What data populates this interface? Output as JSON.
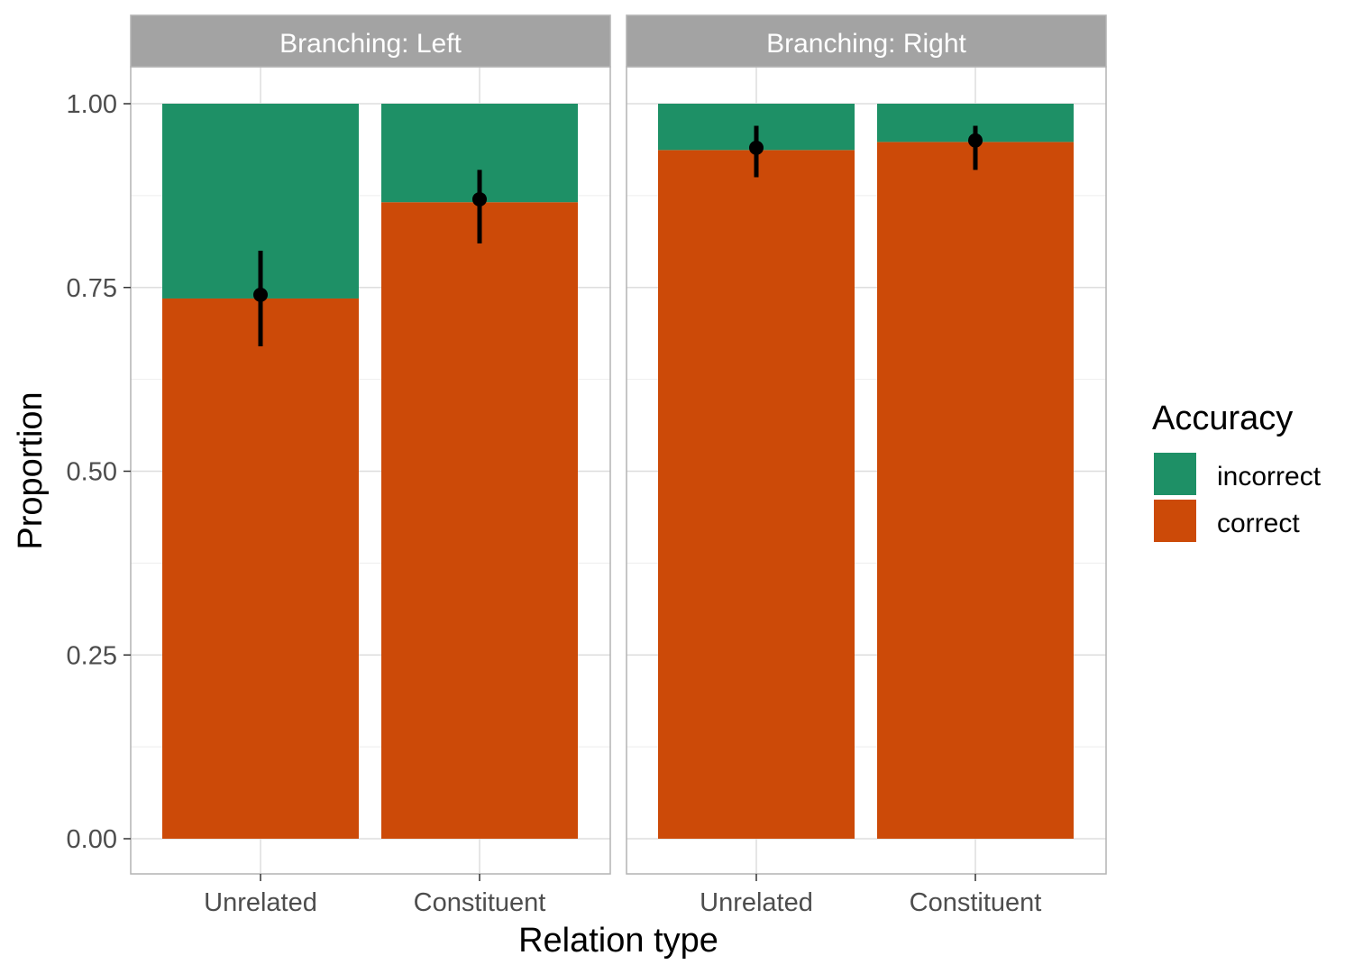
{
  "chart_data": {
    "type": "bar",
    "stacked": true,
    "facets": [
      "Branching: Left",
      "Branching: Right"
    ],
    "categories": [
      "Unrelated",
      "Constituent"
    ],
    "xlabel": "Relation type",
    "ylabel": "Proportion",
    "ylim": [
      0,
      1
    ],
    "yticks": [
      0,
      0.25,
      0.5,
      0.75,
      1
    ],
    "ytick_labels": [
      "0.00",
      "0.25",
      "0.50",
      "0.75",
      "1.00"
    ],
    "grid": true,
    "legend": {
      "title": "Accuracy",
      "position": "right",
      "items": [
        {
          "label": "incorrect",
          "color": "#1b9e77"
        },
        {
          "label": "correct",
          "color": "#d95f02"
        }
      ]
    },
    "series": [
      {
        "name": "correct",
        "color": "#cc4a08",
        "values": [
          [
            0.735,
            0.866
          ],
          [
            0.937,
            0.948
          ]
        ]
      },
      {
        "name": "incorrect",
        "color": "#1e9066",
        "values": [
          [
            0.265,
            0.134
          ],
          [
            0.063,
            0.052
          ]
        ]
      }
    ],
    "error_bars": {
      "mean": [
        [
          0.74,
          0.87
        ],
        [
          0.94,
          0.95
        ]
      ],
      "lower": [
        [
          0.67,
          0.81
        ],
        [
          0.9,
          0.91
        ]
      ],
      "upper": [
        [
          0.8,
          0.91
        ],
        [
          0.97,
          0.97
        ]
      ]
    }
  }
}
